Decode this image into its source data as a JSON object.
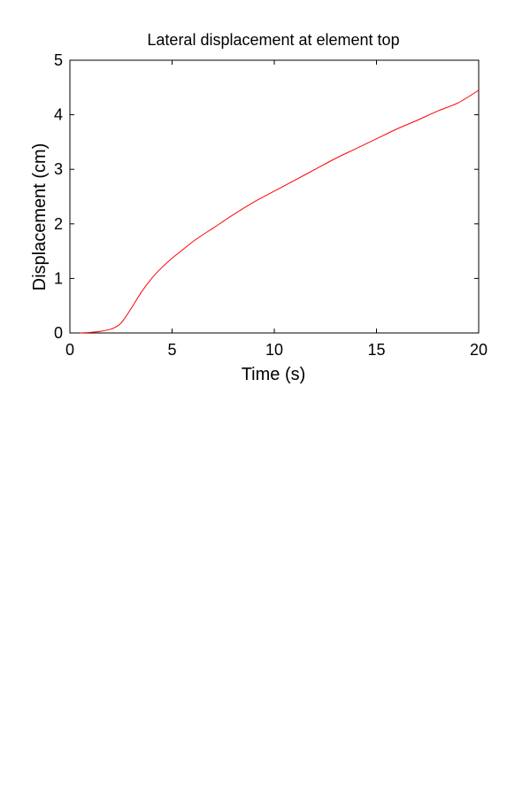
{
  "chart_data": {
    "type": "line",
    "title": "Lateral displacement at element top",
    "xlabel": "Time (s)",
    "ylabel": "Displacement (cm)",
    "xlim": [
      0,
      20
    ],
    "ylim": [
      0,
      5
    ],
    "xticks": [
      0,
      5,
      10,
      15,
      20
    ],
    "yticks": [
      0,
      1,
      2,
      3,
      4,
      5
    ],
    "xtick_labels": [
      "0",
      "5",
      "10",
      "15",
      "20"
    ],
    "ytick_labels": [
      "0",
      "1",
      "2",
      "3",
      "4",
      "5"
    ],
    "grid": false,
    "legend": null,
    "series": [
      {
        "color": "#ff0000",
        "x": [
          0.5,
          1.0,
          1.5,
          2.0,
          2.3,
          2.5,
          2.7,
          3.0,
          3.5,
          4.0,
          4.5,
          5.0,
          5.5,
          6.0,
          6.5,
          7.0,
          8.0,
          9.0,
          10.0,
          11.0,
          12.0,
          13.0,
          14.0,
          15.0,
          16.0,
          17.0,
          18.0,
          19.0,
          20.0
        ],
        "y": [
          0.0,
          0.01,
          0.03,
          0.07,
          0.12,
          0.18,
          0.28,
          0.45,
          0.75,
          1.0,
          1.2,
          1.37,
          1.52,
          1.67,
          1.8,
          1.92,
          2.17,
          2.4,
          2.6,
          2.8,
          3.0,
          3.2,
          3.38,
          3.56,
          3.74,
          3.9,
          4.07,
          4.22,
          4.45
        ]
      }
    ]
  }
}
